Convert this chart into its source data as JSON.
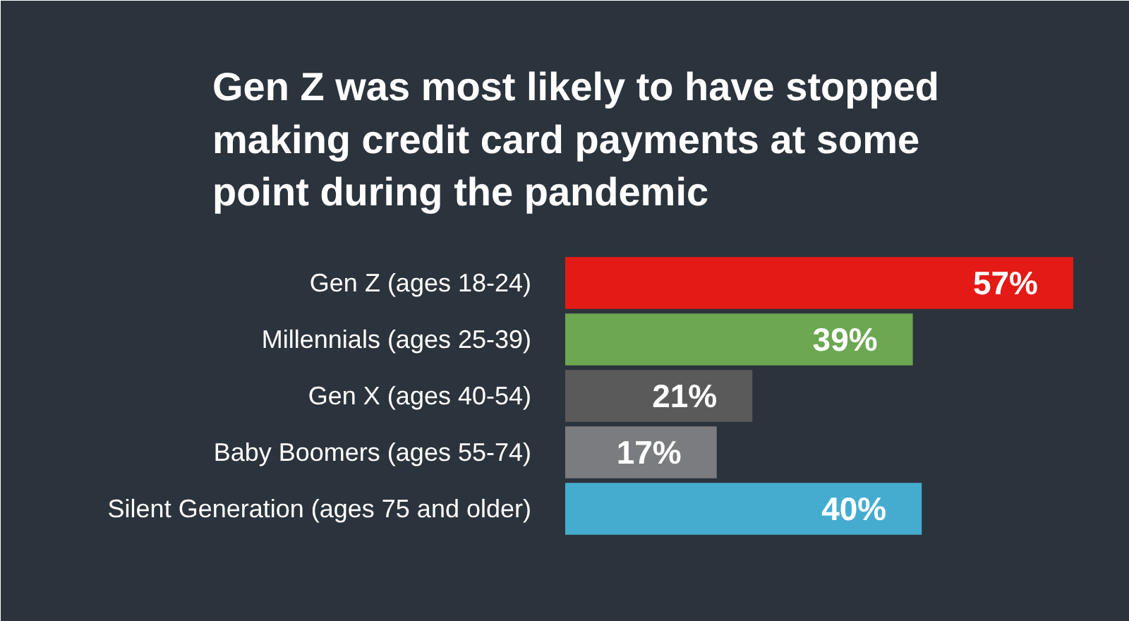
{
  "chart_data": {
    "type": "bar",
    "orientation": "horizontal",
    "title": "Gen Z was most likely to have stopped making credit card payments at some point during the pandemic",
    "categories": [
      "Gen Z (ages 18-24)",
      "Millennials (ages 25-39)",
      "Gen X (ages 40-54)",
      "Baby Boomers (ages 55-74)",
      "Silent Generation (ages 75 and older)"
    ],
    "values": [
      57,
      39,
      21,
      17,
      40
    ],
    "colors": [
      "#e41a16",
      "#6ca752",
      "#5a5a5a",
      "#7a7c7f",
      "#45acd0"
    ],
    "value_labels": [
      "57%",
      "39%",
      "21%",
      "17%",
      "40%"
    ]
  }
}
